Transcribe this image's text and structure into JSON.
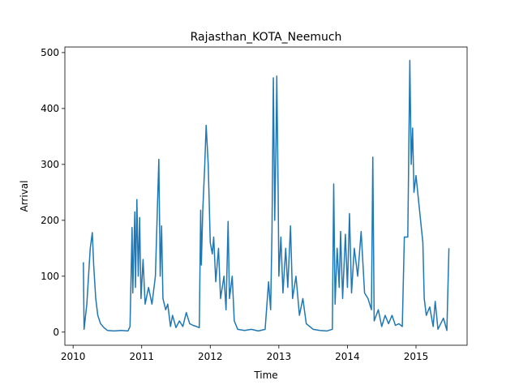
{
  "chart_data": {
    "type": "line",
    "title": "Rajasthan_KOTA_Neemuch",
    "xlabel": "Time",
    "ylabel": "Arrival",
    "x": [
      2010.15,
      2010.16,
      2010.2,
      2010.25,
      2010.28,
      2010.3,
      2010.33,
      2010.36,
      2010.4,
      2010.45,
      2010.5,
      2010.6,
      2010.7,
      2010.8,
      2010.83,
      2010.86,
      2010.87,
      2010.9,
      2010.91,
      2010.93,
      2010.95,
      2010.97,
      2010.99,
      2011.02,
      2011.05,
      2011.1,
      2011.15,
      2011.2,
      2011.25,
      2011.27,
      2011.29,
      2011.31,
      2011.35,
      2011.38,
      2011.42,
      2011.45,
      2011.5,
      2011.55,
      2011.6,
      2011.65,
      2011.7,
      2011.75,
      2011.8,
      2011.84,
      2011.86,
      2011.87,
      2011.89,
      2011.92,
      2011.94,
      2011.97,
      2012.0,
      2012.03,
      2012.05,
      2012.08,
      2012.12,
      2012.15,
      2012.2,
      2012.23,
      2012.26,
      2012.28,
      2012.32,
      2012.35,
      2012.4,
      2012.5,
      2012.6,
      2012.7,
      2012.8,
      2012.85,
      2012.88,
      2012.9,
      2012.92,
      2012.94,
      2012.96,
      2012.97,
      2012.99,
      2013.0,
      2013.03,
      2013.06,
      2013.1,
      2013.13,
      2013.17,
      2013.2,
      2013.25,
      2013.3,
      2013.35,
      2013.4,
      2013.5,
      2013.6,
      2013.7,
      2013.78,
      2013.8,
      2013.82,
      2013.85,
      2013.88,
      2013.9,
      2013.93,
      2013.97,
      2014.0,
      2014.03,
      2014.06,
      2014.1,
      2014.15,
      2014.2,
      2014.25,
      2014.3,
      2014.35,
      2014.37,
      2014.39,
      2014.45,
      2014.5,
      2014.55,
      2014.6,
      2014.65,
      2014.7,
      2014.75,
      2014.8,
      2014.83,
      2014.88,
      2014.91,
      2014.93,
      2014.95,
      2014.97,
      2015.0,
      2015.05,
      2015.1,
      2015.12,
      2015.15,
      2015.2,
      2015.25,
      2015.28,
      2015.32,
      2015.4,
      2015.45,
      2015.48
    ],
    "series": [
      {
        "name": "Arrival",
        "color": "#1f77b4",
        "values": [
          125,
          5,
          50,
          150,
          178,
          120,
          60,
          30,
          15,
          8,
          3,
          2,
          3,
          2,
          10,
          187,
          70,
          215,
          80,
          237,
          100,
          205,
          60,
          130,
          50,
          80,
          50,
          100,
          309,
          100,
          190,
          60,
          40,
          50,
          10,
          30,
          8,
          20,
          10,
          35,
          15,
          12,
          10,
          8,
          218,
          120,
          215,
          300,
          370,
          300,
          160,
          140,
          170,
          90,
          150,
          60,
          100,
          40,
          198,
          60,
          100,
          20,
          5,
          3,
          5,
          2,
          5,
          90,
          40,
          180,
          455,
          200,
          350,
          458,
          250,
          100,
          170,
          70,
          150,
          80,
          190,
          60,
          100,
          30,
          60,
          15,
          5,
          3,
          2,
          5,
          265,
          50,
          150,
          80,
          180,
          60,
          175,
          80,
          212,
          70,
          150,
          100,
          180,
          70,
          60,
          40,
          313,
          20,
          40,
          10,
          30,
          15,
          30,
          12,
          15,
          10,
          170,
          170,
          486,
          300,
          365,
          250,
          280,
          220,
          160,
          60,
          30,
          45,
          10,
          55,
          5,
          25,
          3,
          150
        ]
      }
    ],
    "xlim": [
      2009.88,
      2015.745
    ],
    "xticks": [
      2010,
      2011,
      2012,
      2013,
      2014,
      2015
    ],
    "ylim": [
      -23.5,
      510
    ],
    "yticks": [
      0,
      100,
      200,
      300,
      400,
      500
    ]
  }
}
